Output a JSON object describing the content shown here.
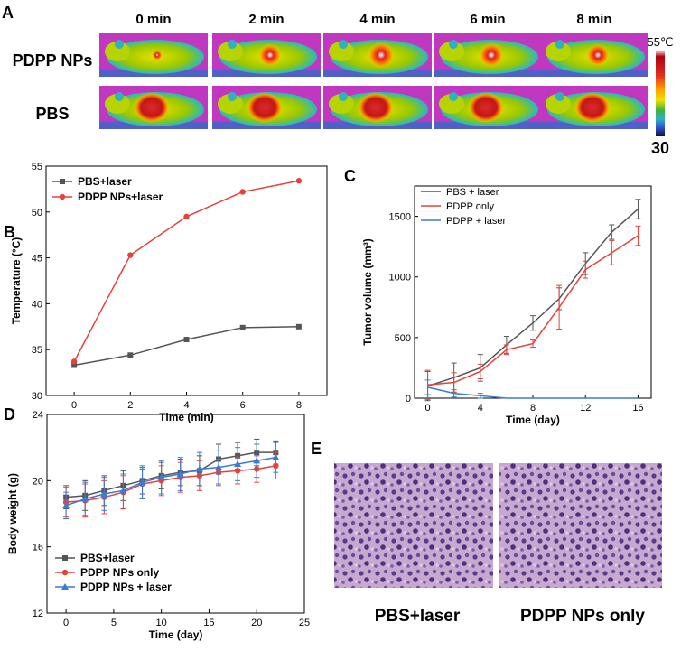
{
  "panels": {
    "A": "A",
    "B": "B",
    "C": "C",
    "D": "D",
    "E": "E"
  },
  "colors": {
    "gray": "#555555",
    "red": "#e8413c",
    "blue": "#3a7bd5"
  },
  "panel_a": {
    "times": [
      "0 min",
      "2 min",
      "4 min",
      "6 min",
      "8 min"
    ],
    "rows": [
      "PDPP NPs",
      "PBS"
    ],
    "scale_max": "55℃",
    "scale_min": "30",
    "image_label": "infrared thermal image"
  },
  "panel_e": {
    "captions": [
      "PBS+laser",
      "PDPP NPs only"
    ],
    "image_label": "H&E stained tissue section"
  },
  "chart_data": [
    {
      "id": "B",
      "type": "line",
      "xlabel": "Time (min)",
      "ylabel": "Temperature (°C)",
      "xlim": [
        -1,
        9
      ],
      "ylim": [
        30,
        55
      ],
      "xticks": [
        0,
        2,
        4,
        6,
        8
      ],
      "yticks": [
        30,
        35,
        40,
        45,
        50,
        55
      ],
      "series": [
        {
          "name": "PBS+laser",
          "color": "#555555",
          "marker": "square",
          "x": [
            0,
            2,
            4,
            6,
            8
          ],
          "y": [
            33.3,
            34.4,
            36.1,
            37.4,
            37.5
          ]
        },
        {
          "name": "PDPP NPs+laser",
          "color": "#e8413c",
          "marker": "circle",
          "x": [
            0,
            2,
            4,
            6,
            8
          ],
          "y": [
            33.7,
            45.3,
            49.5,
            52.2,
            53.4
          ]
        }
      ]
    },
    {
      "id": "C",
      "type": "line",
      "xlabel": "Time (day)",
      "ylabel": "Tumor volume (mm³)",
      "xlim": [
        -1,
        17
      ],
      "ylim": [
        0,
        1750
      ],
      "xticks": [
        0,
        4,
        8,
        12,
        16
      ],
      "yticks": [
        0,
        500,
        1000,
        1500
      ],
      "series": [
        {
          "name": "PBS + laser",
          "color": "#555555",
          "x": [
            0,
            2,
            4,
            6,
            8,
            10,
            12,
            14,
            16
          ],
          "y": [
            100,
            170,
            250,
            440,
            620,
            820,
            1110,
            1370,
            1560
          ],
          "err": [
            120,
            120,
            110,
            70,
            60,
            90,
            90,
            60,
            80
          ]
        },
        {
          "name": "PDPP only",
          "color": "#e8413c",
          "x": [
            0,
            2,
            4,
            6,
            8,
            10,
            12,
            14,
            16
          ],
          "y": [
            110,
            130,
            220,
            400,
            450,
            750,
            1060,
            1200,
            1340
          ],
          "err": [
            120,
            80,
            60,
            40,
            30,
            180,
            70,
            100,
            80
          ]
        },
        {
          "name": "PDPP + laser",
          "color": "#3a7bd5",
          "x": [
            0,
            2,
            4,
            6,
            8,
            10,
            12,
            14,
            16
          ],
          "y": [
            90,
            40,
            20,
            0,
            0,
            0,
            0,
            0,
            0
          ],
          "err": [
            60,
            30,
            20,
            0,
            0,
            0,
            0,
            0,
            0
          ]
        }
      ]
    },
    {
      "id": "D",
      "type": "line",
      "xlabel": "Time (day)",
      "ylabel": "Body weight (g)",
      "xlim": [
        -2,
        25
      ],
      "ylim": [
        12,
        24
      ],
      "xticks": [
        0,
        5,
        10,
        15,
        20,
        25
      ],
      "yticks": [
        12,
        16,
        20,
        24
      ],
      "series": [
        {
          "name": "PBS+laser",
          "color": "#555555",
          "marker": "square",
          "x": [
            0,
            2,
            4,
            6,
            8,
            10,
            12,
            14,
            16,
            18,
            20,
            22
          ],
          "y": [
            19.0,
            19.1,
            19.4,
            19.7,
            20.0,
            20.3,
            20.5,
            20.6,
            21.3,
            21.5,
            21.7,
            21.7
          ],
          "err": [
            0.7,
            0.9,
            0.9,
            0.9,
            0.8,
            0.8,
            0.8,
            0.9,
            0.9,
            0.8,
            0.8,
            0.7
          ]
        },
        {
          "name": "PDPP NPs only",
          "color": "#e8413c",
          "marker": "circle",
          "x": [
            0,
            2,
            4,
            6,
            8,
            10,
            12,
            14,
            16,
            18,
            20,
            22
          ],
          "y": [
            18.7,
            18.8,
            19.0,
            19.3,
            19.8,
            20.0,
            20.2,
            20.3,
            20.5,
            20.6,
            20.7,
            20.9
          ],
          "err": [
            0.9,
            1.0,
            1.0,
            1.0,
            0.9,
            0.9,
            0.9,
            0.9,
            0.8,
            0.8,
            0.8,
            0.8
          ]
        },
        {
          "name": "PDPP NPs + laser",
          "color": "#3a7bd5",
          "marker": "triangle",
          "x": [
            0,
            2,
            4,
            6,
            8,
            10,
            12,
            14,
            16,
            18,
            20,
            22
          ],
          "y": [
            18.5,
            18.9,
            19.2,
            19.4,
            19.9,
            20.2,
            20.4,
            20.7,
            20.8,
            21.0,
            21.2,
            21.4
          ],
          "err": [
            0.8,
            1.0,
            1.0,
            1.0,
            1.0,
            1.0,
            1.0,
            1.0,
            1.0,
            1.0,
            1.0,
            0.9
          ]
        }
      ]
    }
  ]
}
